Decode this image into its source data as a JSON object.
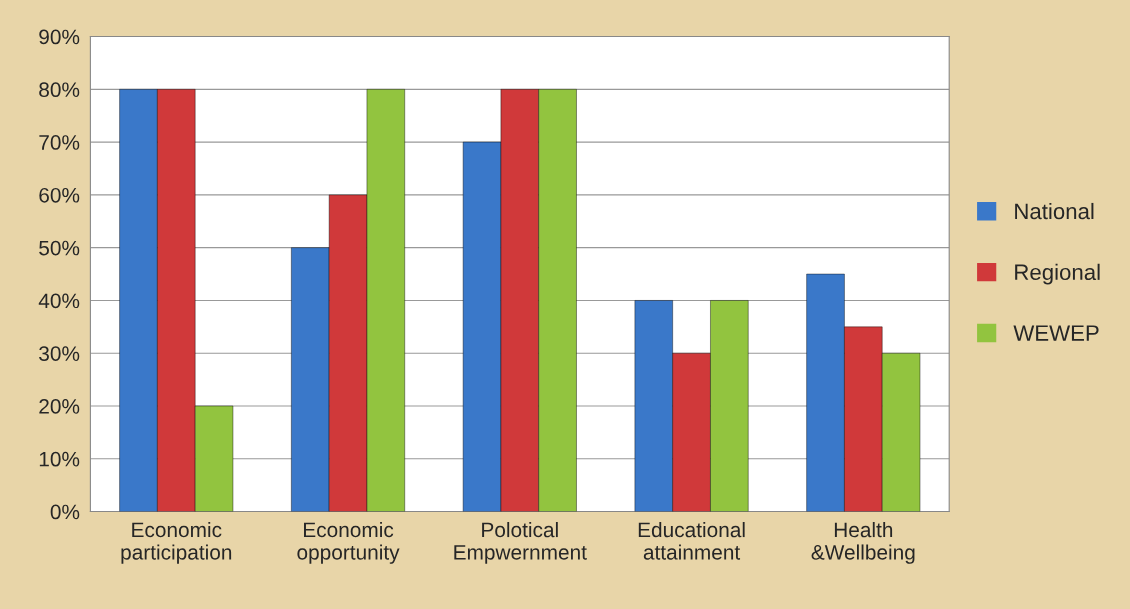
{
  "chart_data": {
    "type": "bar",
    "categories": [
      "Economic\nparticipation",
      "Economic\nopportunity",
      "Polotical\nEmpwernment",
      "Educational\nattainment",
      "Health\n&Wellbeing"
    ],
    "series": [
      {
        "name": "National",
        "color": "#3a78c9",
        "values": [
          80,
          50,
          70,
          40,
          45
        ]
      },
      {
        "name": "Regional",
        "color": "#d0393a",
        "values": [
          80,
          60,
          80,
          30,
          35
        ]
      },
      {
        "name": "WEWEP",
        "color": "#92c43f",
        "values": [
          20,
          80,
          80,
          40,
          30
        ]
      }
    ],
    "ylim": [
      0,
      90
    ],
    "yticks": [
      {
        "value": 0,
        "label": "0%"
      },
      {
        "value": 10,
        "label": "10%"
      },
      {
        "value": 20,
        "label": "20%"
      },
      {
        "value": 30,
        "label": "30%"
      },
      {
        "value": 40,
        "label": "40%"
      },
      {
        "value": 50,
        "label": "50%"
      },
      {
        "value": 60,
        "label": "60%"
      },
      {
        "value": 70,
        "label": "70%"
      },
      {
        "value": 80,
        "label": "80%"
      },
      {
        "value": 90,
        "label": "90%"
      }
    ],
    "grid": "y",
    "legend": "right"
  }
}
